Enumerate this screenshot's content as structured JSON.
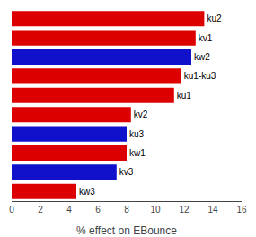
{
  "chart_data": {
    "type": "bar",
    "orientation": "horizontal",
    "categories": [
      "kw3",
      "kv3",
      "kw1",
      "ku3",
      "kv2",
      "ku1",
      "ku1-ku3",
      "kw2",
      "kv1",
      "ku2"
    ],
    "values": [
      4.5,
      7.3,
      8.0,
      8.0,
      8.3,
      11.3,
      11.8,
      12.5,
      12.8,
      13.4
    ],
    "colors": [
      "#dd0000",
      "#1111cc",
      "#dd0000",
      "#1111cc",
      "#dd0000",
      "#dd0000",
      "#dd0000",
      "#1111cc",
      "#dd0000",
      "#dd0000"
    ],
    "xlabel": "% effect on EBounce",
    "xlim": [
      0,
      16
    ],
    "xticks": [
      0,
      2,
      4,
      6,
      8,
      10,
      12,
      14,
      16
    ],
    "grid": false,
    "tick_labels": "x"
  }
}
